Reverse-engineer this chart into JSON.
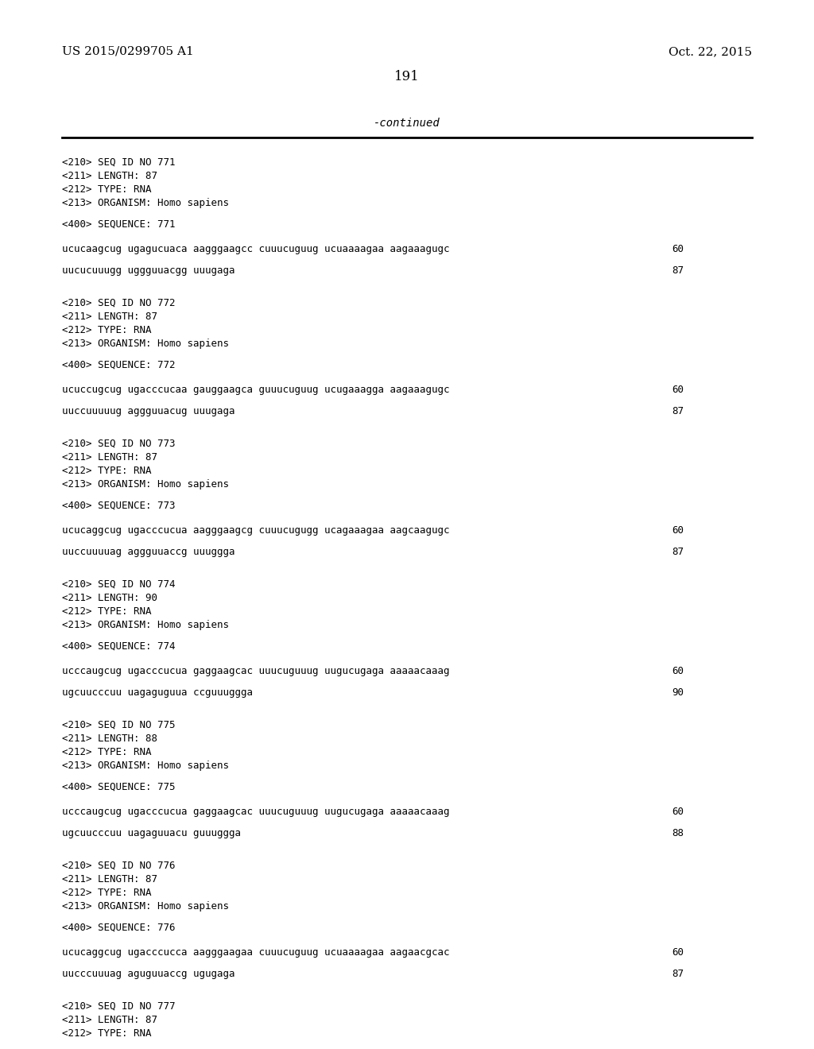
{
  "bg_color": "#ffffff",
  "header_left": "US 2015/0299705 A1",
  "header_right": "Oct. 22, 2015",
  "page_number": "191",
  "continued_text": "-continued",
  "entries": [
    {
      "seq_id": "771",
      "length": "87",
      "type": "RNA",
      "organism": "Homo sapiens",
      "sequence_lines": [
        [
          "ucucaagcug ugagucuaca aagggaagcc cuuucuguug ucuaaaagaa aagaaagugc",
          "60"
        ],
        [
          "uucucuuugg uggguuacgg uuugaga",
          "87"
        ]
      ]
    },
    {
      "seq_id": "772",
      "length": "87",
      "type": "RNA",
      "organism": "Homo sapiens",
      "sequence_lines": [
        [
          "ucuccugcug ugacccucaa gauggaagca guuucuguug ucugaaagga aagaaagugc",
          "60"
        ],
        [
          "uuccuuuuug aggguuacug uuugaga",
          "87"
        ]
      ]
    },
    {
      "seq_id": "773",
      "length": "87",
      "type": "RNA",
      "organism": "Homo sapiens",
      "sequence_lines": [
        [
          "ucucaggcug ugacccucua aagggaagcg cuuucugugg ucagaaagaa aagcaagugc",
          "60"
        ],
        [
          "uuccuuuuag aggguuaccg uuuggga",
          "87"
        ]
      ]
    },
    {
      "seq_id": "774",
      "length": "90",
      "type": "RNA",
      "organism": "Homo sapiens",
      "sequence_lines": [
        [
          "ucccaugcug ugacccucua gaggaagcac uuucuguuug uugucugaga aaaaacaaag",
          "60"
        ],
        [
          "ugcuucccuu uagaguguua ccguuuggga",
          "90"
        ]
      ]
    },
    {
      "seq_id": "775",
      "length": "88",
      "type": "RNA",
      "organism": "Homo sapiens",
      "sequence_lines": [
        [
          "ucccaugcug ugacccucua gaggaagcac uuucuguuug uugucugaga aaaaacaaag",
          "60"
        ],
        [
          "ugcuucccuu uagaguuacu guuuggga",
          "88"
        ]
      ]
    },
    {
      "seq_id": "776",
      "length": "87",
      "type": "RNA",
      "organism": "Homo sapiens",
      "sequence_lines": [
        [
          "ucucaggcug ugacccucca aagggaagaa cuuucuguug ucuaaaagaa aagaacgcac",
          "60"
        ],
        [
          "uucccuuuag aguguuaccg ugugaga",
          "87"
        ]
      ]
    },
    {
      "seq_id": "777",
      "length": "87",
      "type": "RNA",
      "organism": null,
      "sequence_lines": []
    }
  ]
}
